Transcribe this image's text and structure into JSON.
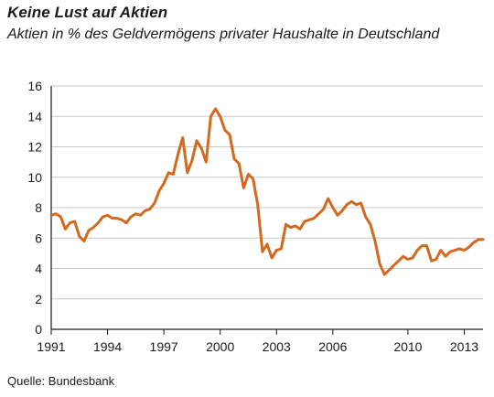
{
  "header": {
    "title": "Keine Lust auf Aktien",
    "subtitle": "Aktien in % des Geldvermögens privater Haushalte in Deutschland"
  },
  "footer": {
    "source": "Quelle: Bundesbank"
  },
  "colors": {
    "line": "#D2691E",
    "grid": "#c8c8c8",
    "axis": "#1a1a1a"
  },
  "chart_data": {
    "type": "line",
    "title": "Keine Lust auf Aktien",
    "subtitle": "Aktien in % des Geldvermögens privater Haushalte in Deutschland",
    "xlabel": "",
    "ylabel": "",
    "xlim": [
      1991,
      2014
    ],
    "ylim": [
      0,
      16
    ],
    "x_ticks": [
      1991,
      1994,
      1997,
      2000,
      2003,
      2006,
      2010,
      2013
    ],
    "y_ticks": [
      0,
      2,
      4,
      6,
      8,
      10,
      12,
      14,
      16
    ],
    "grid": true,
    "series": [
      {
        "x": [
          1991.0,
          1991.25,
          1991.5,
          1991.75,
          1992.0,
          1992.25,
          1992.5,
          1992.75,
          1993.0,
          1993.25,
          1993.5,
          1993.75,
          1994.0,
          1994.25,
          1994.5,
          1994.75,
          1995.0,
          1995.25,
          1995.5,
          1995.75,
          1996.0,
          1996.25,
          1996.5,
          1996.75,
          1997.0,
          1997.25,
          1997.5,
          1997.75,
          1998.0,
          1998.25,
          1998.5,
          1998.75,
          1999.0,
          1999.25,
          1999.5,
          1999.75,
          2000.0,
          2000.25,
          2000.5,
          2000.75,
          2001.0,
          2001.25,
          2001.5,
          2001.75,
          2002.0,
          2002.25,
          2002.5,
          2002.75,
          2003.0,
          2003.25,
          2003.5,
          2003.75,
          2004.0,
          2004.25,
          2004.5,
          2004.75,
          2005.0,
          2005.25,
          2005.5,
          2005.75,
          2006.0,
          2006.25,
          2006.5,
          2006.75,
          2007.0,
          2007.25,
          2007.5,
          2007.75,
          2008.0,
          2008.25,
          2008.5,
          2008.75,
          2009.0,
          2009.25,
          2009.5,
          2009.75,
          2010.0,
          2010.25,
          2010.5,
          2010.75,
          2011.0,
          2011.25,
          2011.5,
          2011.75,
          2012.0,
          2012.25,
          2012.5,
          2012.75,
          2013.0,
          2013.25,
          2013.5,
          2013.75,
          2014.0
        ],
        "y": [
          7.5,
          7.6,
          7.4,
          6.6,
          7.0,
          7.1,
          6.1,
          5.8,
          6.5,
          6.7,
          7.0,
          7.4,
          7.5,
          7.3,
          7.3,
          7.2,
          7.0,
          7.4,
          7.6,
          7.5,
          7.8,
          7.9,
          8.3,
          9.1,
          9.6,
          10.3,
          10.2,
          11.5,
          12.6,
          10.3,
          11.1,
          12.4,
          11.9,
          11.0,
          14.0,
          14.5,
          14.0,
          13.1,
          12.8,
          11.2,
          10.9,
          9.3,
          10.2,
          9.9,
          8.2,
          5.1,
          5.6,
          4.7,
          5.2,
          5.3,
          6.9,
          6.7,
          6.8,
          6.6,
          7.1,
          7.2,
          7.3,
          7.6,
          7.9,
          8.6,
          8.0,
          7.5,
          7.8,
          8.2,
          8.4,
          8.2,
          8.3,
          7.4,
          6.9,
          5.8,
          4.3,
          3.6,
          3.9,
          4.2,
          4.5,
          4.8,
          4.6,
          4.7,
          5.2,
          5.5,
          5.5,
          4.5,
          4.6,
          5.2,
          4.8,
          5.1,
          5.2,
          5.3,
          5.2,
          5.4,
          5.7,
          5.9,
          5.9
        ]
      }
    ]
  }
}
